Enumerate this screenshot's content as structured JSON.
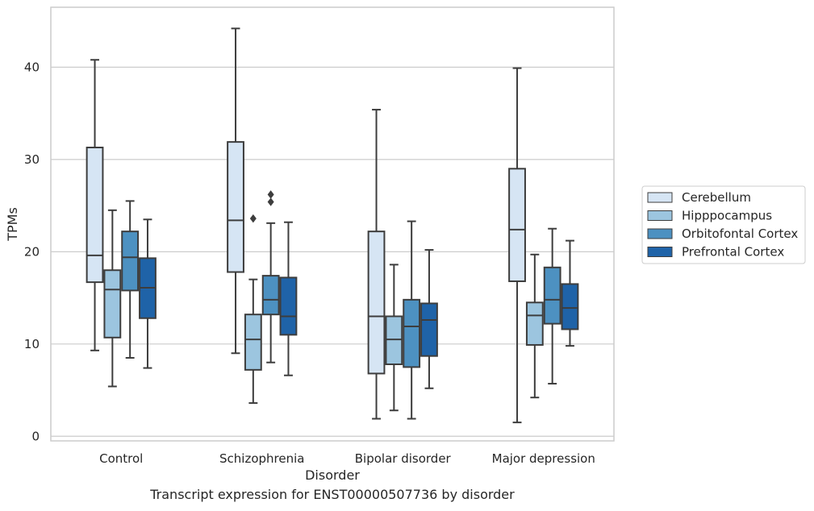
{
  "caption": "Transcript expression for ENST00000507736 by disorder",
  "chart_data": {
    "type": "box",
    "xlabel": "Disorder",
    "ylabel": "TPMs",
    "ylim": [
      -0.5,
      46.5
    ],
    "yticks": [
      0,
      10,
      20,
      30,
      40
    ],
    "grid": "horizontal",
    "legend_position": "right",
    "categories": [
      "Control",
      "Schizophrenia",
      "Bipolar disorder",
      "Major depression"
    ],
    "series": [
      {
        "name": "Cerebellum",
        "color": "#d6e5f4",
        "boxes": [
          {
            "whislo": 9.3,
            "q1": 16.7,
            "med": 19.6,
            "q3": 31.3,
            "whishi": 40.8,
            "fliers": []
          },
          {
            "whislo": 9.0,
            "q1": 17.8,
            "med": 23.4,
            "q3": 31.9,
            "whishi": 44.2,
            "fliers": []
          },
          {
            "whislo": 1.9,
            "q1": 6.8,
            "med": 13.0,
            "q3": 22.2,
            "whishi": 35.4,
            "fliers": []
          },
          {
            "whislo": 1.5,
            "q1": 16.8,
            "med": 22.4,
            "q3": 29.0,
            "whishi": 39.9,
            "fliers": []
          }
        ]
      },
      {
        "name": "Hipppocampus",
        "color": "#9cc5df",
        "boxes": [
          {
            "whislo": 5.4,
            "q1": 10.7,
            "med": 15.9,
            "q3": 18.0,
            "whishi": 24.5,
            "fliers": []
          },
          {
            "whislo": 3.6,
            "q1": 7.2,
            "med": 10.5,
            "q3": 13.2,
            "whishi": 17.0,
            "fliers": [
              23.6
            ]
          },
          {
            "whislo": 2.8,
            "q1": 7.8,
            "med": 10.5,
            "q3": 13.0,
            "whishi": 18.6,
            "fliers": []
          },
          {
            "whislo": 4.2,
            "q1": 9.9,
            "med": 13.1,
            "q3": 14.5,
            "whishi": 19.7,
            "fliers": []
          }
        ]
      },
      {
        "name": "Orbitofontal Cortex",
        "color": "#4d91c1",
        "boxes": [
          {
            "whislo": 8.5,
            "q1": 15.8,
            "med": 19.4,
            "q3": 22.2,
            "whishi": 25.5,
            "fliers": []
          },
          {
            "whislo": 8.0,
            "q1": 13.2,
            "med": 14.8,
            "q3": 17.4,
            "whishi": 23.1,
            "fliers": [
              25.4,
              26.2
            ]
          },
          {
            "whislo": 1.9,
            "q1": 7.5,
            "med": 11.9,
            "q3": 14.8,
            "whishi": 23.3,
            "fliers": []
          },
          {
            "whislo": 5.7,
            "q1": 12.2,
            "med": 14.8,
            "q3": 18.3,
            "whishi": 22.5,
            "fliers": []
          }
        ]
      },
      {
        "name": "Prefrontal Cortex",
        "color": "#1f63a8",
        "boxes": [
          {
            "whislo": 7.4,
            "q1": 12.8,
            "med": 16.1,
            "q3": 19.3,
            "whishi": 23.5,
            "fliers": []
          },
          {
            "whislo": 6.6,
            "q1": 11.0,
            "med": 13.0,
            "q3": 17.2,
            "whishi": 23.2,
            "fliers": []
          },
          {
            "whislo": 5.2,
            "q1": 8.7,
            "med": 12.6,
            "q3": 14.4,
            "whishi": 20.2,
            "fliers": []
          },
          {
            "whislo": 9.8,
            "q1": 11.6,
            "med": 13.9,
            "q3": 16.5,
            "whishi": 21.2,
            "fliers": []
          }
        ]
      }
    ]
  }
}
